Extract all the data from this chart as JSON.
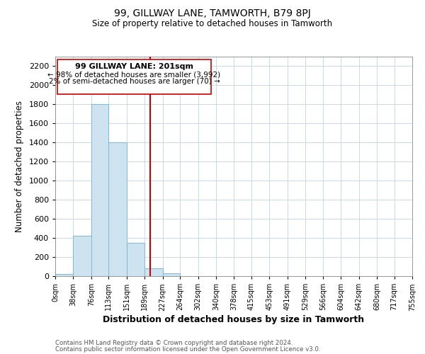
{
  "title1": "99, GILLWAY LANE, TAMWORTH, B79 8PJ",
  "title2": "Size of property relative to detached houses in Tamworth",
  "xlabel": "Distribution of detached houses by size in Tamworth",
  "ylabel": "Number of detached properties",
  "bar_color": "#cde4f0",
  "bar_edge_color": "#7fb8d8",
  "vline_color": "#cc0000",
  "vline_x": 201,
  "bin_edges": [
    0,
    38,
    76,
    113,
    151,
    189,
    227,
    264,
    302,
    340,
    378,
    415,
    453,
    491,
    529,
    566,
    604,
    642,
    680,
    717,
    755
  ],
  "bar_heights": [
    20,
    420,
    1800,
    1400,
    350,
    80,
    30,
    0,
    0,
    0,
    0,
    0,
    0,
    0,
    0,
    0,
    0,
    0,
    0,
    0
  ],
  "xlim": [
    0,
    755
  ],
  "ylim": [
    0,
    2300
  ],
  "yticks": [
    0,
    200,
    400,
    600,
    800,
    1000,
    1200,
    1400,
    1600,
    1800,
    2000,
    2200
  ],
  "xtick_labels": [
    "0sqm",
    "38sqm",
    "76sqm",
    "113sqm",
    "151sqm",
    "189sqm",
    "227sqm",
    "264sqm",
    "302sqm",
    "340sqm",
    "378sqm",
    "415sqm",
    "453sqm",
    "491sqm",
    "529sqm",
    "566sqm",
    "604sqm",
    "642sqm",
    "680sqm",
    "717sqm",
    "755sqm"
  ],
  "annotation_title": "99 GILLWAY LANE: 201sqm",
  "annotation_line1": "← 98% of detached houses are smaller (3,992)",
  "annotation_line2": "2% of semi-detached houses are larger (70) →",
  "footer_line1": "Contains HM Land Registry data © Crown copyright and database right 2024.",
  "footer_line2": "Contains public sector information licensed under the Open Government Licence v3.0.",
  "background_color": "#ffffff",
  "grid_color": "#c8d8e8"
}
